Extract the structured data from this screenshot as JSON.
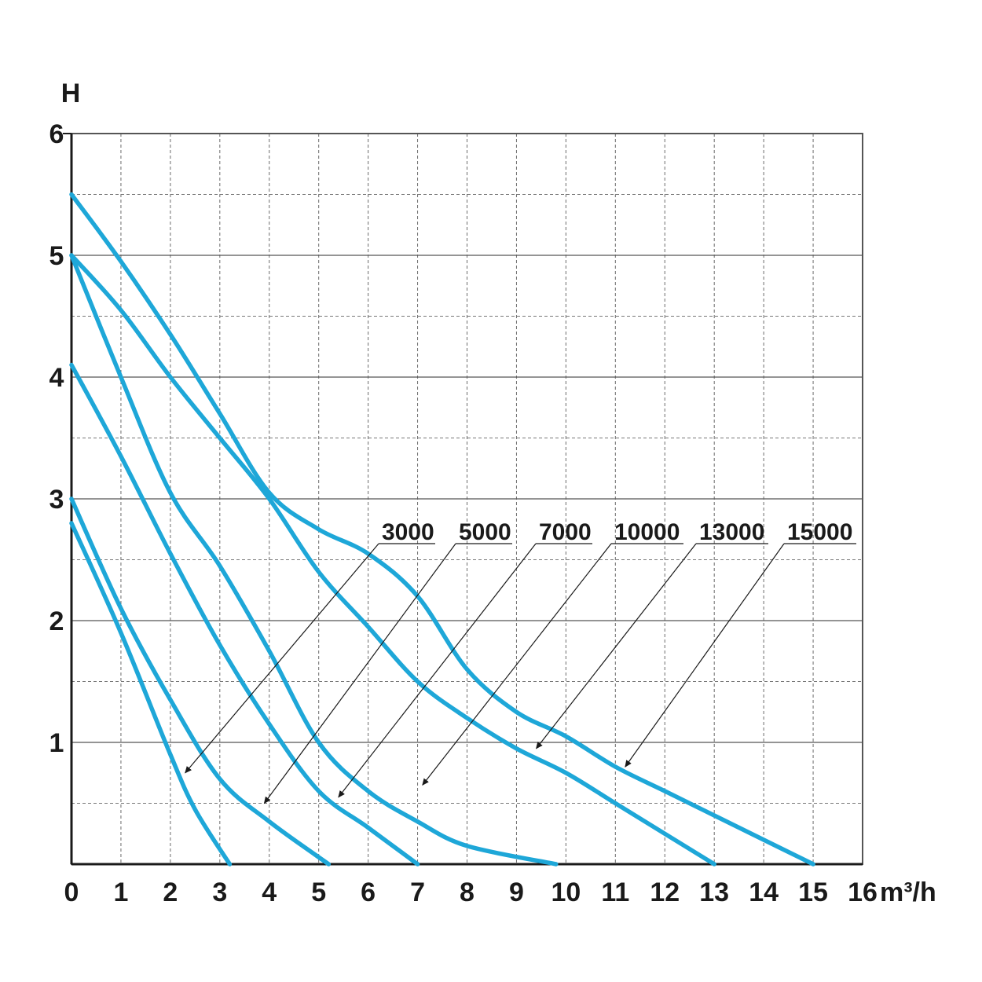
{
  "chart_data": {
    "type": "line",
    "title": "",
    "ylabel": "H",
    "xlabel": "m³/h",
    "xlim": [
      0,
      16
    ],
    "ylim": [
      0,
      6
    ],
    "x_ticks": [
      0,
      1,
      2,
      3,
      4,
      5,
      6,
      7,
      8,
      9,
      10,
      11,
      12,
      13,
      14,
      15,
      16
    ],
    "y_ticks": [
      1,
      2,
      3,
      4,
      5,
      6
    ],
    "x_tick_labels": [
      "0",
      "1",
      "2",
      "3",
      "4",
      "5",
      "6",
      "7",
      "8",
      "9",
      "10",
      "11",
      "12",
      "13",
      "14",
      "15",
      "16"
    ],
    "y_tick_labels": [
      "1",
      "2",
      "3",
      "4",
      "5",
      "6"
    ],
    "grid": true,
    "line_color": "#1ea7d8",
    "series": [
      {
        "name": "3000",
        "x": [
          0,
          1,
          2,
          2.5,
          3.2
        ],
        "y": [
          2.8,
          1.9,
          0.9,
          0.45,
          0
        ]
      },
      {
        "name": "5000",
        "x": [
          0,
          1,
          2,
          3,
          4,
          5.2
        ],
        "y": [
          3.0,
          2.1,
          1.35,
          0.7,
          0.35,
          0
        ]
      },
      {
        "name": "7000",
        "x": [
          0,
          1,
          2,
          3,
          4,
          5,
          6,
          7
        ],
        "y": [
          4.1,
          3.35,
          2.55,
          1.8,
          1.15,
          0.6,
          0.3,
          0
        ]
      },
      {
        "name": "10000",
        "x": [
          0,
          1,
          2,
          3,
          4,
          5,
          6,
          7,
          8,
          9.8
        ],
        "y": [
          5.0,
          4.0,
          3.05,
          2.45,
          1.75,
          1.0,
          0.6,
          0.35,
          0.15,
          0
        ]
      },
      {
        "name": "13000",
        "x": [
          0,
          1,
          2,
          3,
          4,
          5,
          6,
          7,
          8,
          9,
          10,
          11,
          12,
          13
        ],
        "y": [
          5.0,
          4.55,
          4.0,
          3.5,
          3.0,
          2.4,
          1.95,
          1.5,
          1.2,
          0.95,
          0.75,
          0.5,
          0.25,
          0
        ]
      },
      {
        "name": "15000",
        "x": [
          0,
          1,
          2,
          3,
          4,
          5,
          6,
          7,
          8,
          9,
          10,
          11,
          12,
          13,
          14,
          15
        ],
        "y": [
          5.5,
          4.95,
          4.35,
          3.7,
          3.05,
          2.75,
          2.55,
          2.2,
          1.6,
          1.25,
          1.05,
          0.8,
          0.6,
          0.4,
          0.2,
          0
        ]
      }
    ],
    "annotations": [
      {
        "label": "3000",
        "arrow_to": [
          2.3,
          0.75
        ]
      },
      {
        "label": "5000",
        "arrow_to": [
          3.9,
          0.5
        ]
      },
      {
        "label": "7000",
        "arrow_to": [
          5.4,
          0.55
        ]
      },
      {
        "label": "10000",
        "arrow_to": [
          7.1,
          0.65
        ]
      },
      {
        "label": "13000",
        "arrow_to": [
          9.4,
          0.95
        ]
      },
      {
        "label": "15000",
        "arrow_to": [
          11.2,
          0.8
        ]
      }
    ]
  }
}
